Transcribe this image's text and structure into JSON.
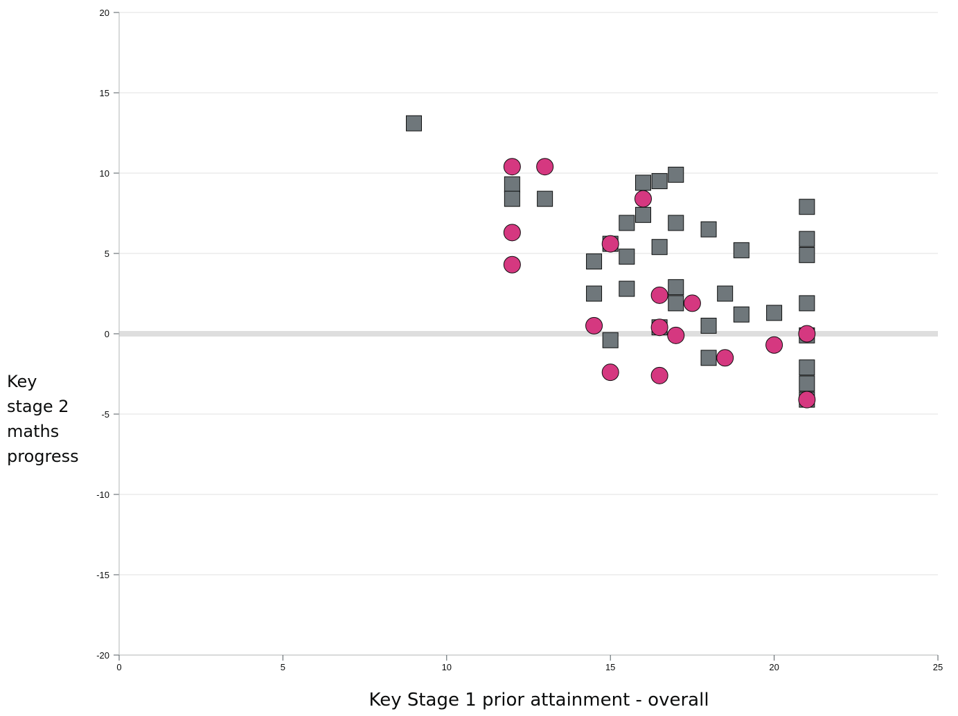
{
  "chart_data": {
    "type": "scatter",
    "title": "",
    "xlabel": "Key Stage 1 prior attainment - overall",
    "ylabel": "Key\nstage 2\nmaths\nprogress",
    "xlim": [
      0,
      25
    ],
    "ylim": [
      -20,
      20
    ],
    "x_ticks": [
      0,
      5,
      10,
      15,
      20,
      25
    ],
    "y_ticks": [
      20,
      15,
      10,
      5,
      0,
      -5,
      -10,
      -15,
      -20
    ],
    "grid": true,
    "reference_line": 0,
    "series": [
      {
        "marker": "square",
        "color": "#6f777b",
        "points": [
          [
            9,
            13.1
          ],
          [
            12,
            9.3
          ],
          [
            12,
            8.4
          ],
          [
            13,
            8.4
          ],
          [
            14.5,
            4.5
          ],
          [
            14.5,
            2.5
          ],
          [
            15,
            5.6
          ],
          [
            15,
            -0.4
          ],
          [
            15.5,
            6.9
          ],
          [
            15.5,
            4.8
          ],
          [
            15.5,
            2.8
          ],
          [
            16,
            9.4
          ],
          [
            16,
            7.4
          ],
          [
            16.5,
            9.5
          ],
          [
            16.5,
            5.4
          ],
          [
            16.5,
            0.4
          ],
          [
            17,
            9.9
          ],
          [
            17,
            6.9
          ],
          [
            17,
            2.9
          ],
          [
            17,
            1.9
          ],
          [
            18,
            6.5
          ],
          [
            18,
            0.5
          ],
          [
            18,
            -1.5
          ],
          [
            18.5,
            2.5
          ],
          [
            19,
            5.2
          ],
          [
            19,
            1.2
          ],
          [
            20,
            1.3
          ],
          [
            21,
            7.9
          ],
          [
            21,
            5.9
          ],
          [
            21,
            4.9
          ],
          [
            21,
            1.9
          ],
          [
            21,
            -0.1
          ],
          [
            21,
            -2.1
          ],
          [
            21,
            -3.1
          ],
          [
            21,
            -4.1
          ]
        ]
      },
      {
        "marker": "circle",
        "color": "#d53880",
        "points": [
          [
            12,
            10.4
          ],
          [
            12,
            6.3
          ],
          [
            12,
            4.3
          ],
          [
            13,
            10.4
          ],
          [
            14.5,
            0.5
          ],
          [
            15,
            -2.4
          ],
          [
            15,
            5.6
          ],
          [
            16,
            8.4
          ],
          [
            16.5,
            2.4
          ],
          [
            16.5,
            0.4
          ],
          [
            16.5,
            -2.6
          ],
          [
            17,
            -0.1
          ],
          [
            17.5,
            1.9
          ],
          [
            18.5,
            -1.5
          ],
          [
            20,
            -0.7
          ],
          [
            21,
            0.0
          ],
          [
            21,
            -4.1
          ]
        ]
      }
    ]
  }
}
